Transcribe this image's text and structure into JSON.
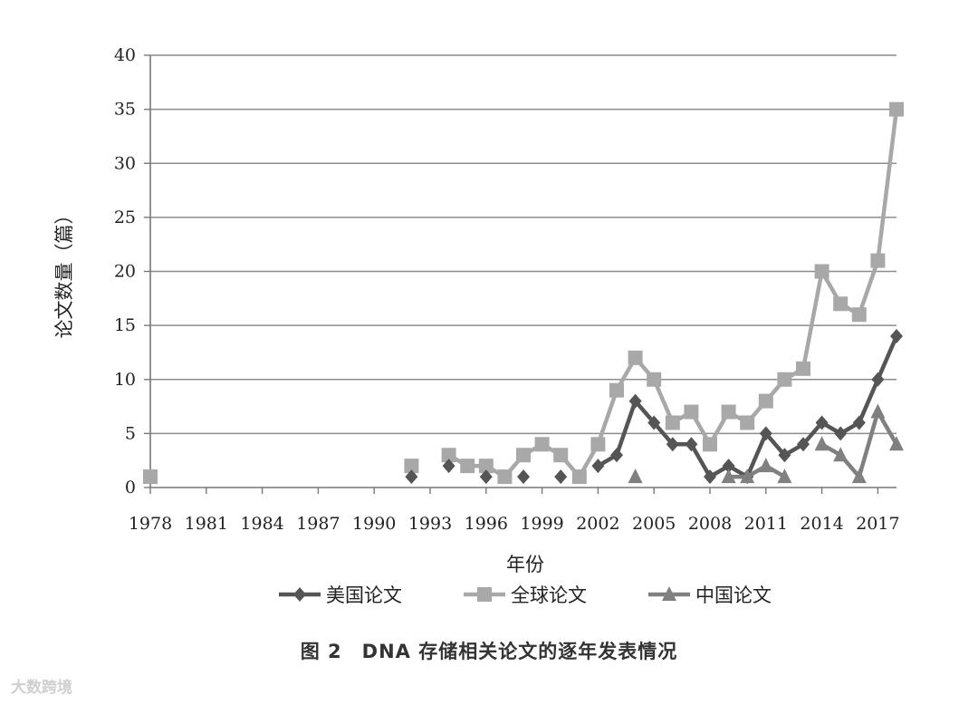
{
  "chart_data": {
    "type": "line",
    "ylabel": "论文数量（篇）",
    "xlabel": "年份",
    "ylim": [
      0,
      40
    ],
    "yticks": [
      0,
      5,
      10,
      15,
      20,
      25,
      30,
      35,
      40
    ],
    "xlim": [
      1978,
      2018
    ],
    "xticks": [
      1978,
      1981,
      1984,
      1987,
      1990,
      1993,
      1996,
      1999,
      2002,
      2005,
      2008,
      2011,
      2014,
      2017
    ],
    "grid": "horizontal",
    "legend_position": "bottom",
    "series": [
      {
        "name": "美国论文",
        "color": "#555555",
        "marker": "diamond",
        "points": [
          [
            1992,
            1
          ],
          [
            1994,
            2
          ],
          [
            1996,
            1
          ],
          [
            1998,
            1
          ],
          [
            2000,
            1
          ],
          [
            2002,
            2
          ],
          [
            2003,
            3
          ],
          [
            2004,
            8
          ],
          [
            2005,
            6
          ],
          [
            2006,
            4
          ],
          [
            2007,
            4
          ],
          [
            2008,
            1
          ],
          [
            2009,
            2
          ],
          [
            2010,
            1
          ],
          [
            2011,
            5
          ],
          [
            2012,
            3
          ],
          [
            2013,
            4
          ],
          [
            2014,
            6
          ],
          [
            2015,
            5
          ],
          [
            2016,
            6
          ],
          [
            2017,
            10
          ],
          [
            2018,
            14
          ]
        ],
        "segments": [
          [
            2002,
            2003,
            2004,
            2005,
            2006,
            2007,
            2008,
            2009,
            2010,
            2011,
            2012,
            2013,
            2014,
            2015,
            2016,
            2017,
            2018
          ]
        ]
      },
      {
        "name": "全球论文",
        "color": "#a8a8a8",
        "marker": "square",
        "points": [
          [
            1978,
            1
          ],
          [
            1992,
            2
          ],
          [
            1994,
            3
          ],
          [
            1995,
            2
          ],
          [
            1996,
            2
          ],
          [
            1997,
            1
          ],
          [
            1998,
            3
          ],
          [
            1999,
            4
          ],
          [
            2000,
            3
          ],
          [
            2001,
            1
          ],
          [
            2002,
            4
          ],
          [
            2003,
            9
          ],
          [
            2004,
            12
          ],
          [
            2005,
            10
          ],
          [
            2006,
            6
          ],
          [
            2007,
            7
          ],
          [
            2008,
            4
          ],
          [
            2009,
            7
          ],
          [
            2010,
            6
          ],
          [
            2011,
            8
          ],
          [
            2012,
            10
          ],
          [
            2013,
            11
          ],
          [
            2014,
            20
          ],
          [
            2015,
            17
          ],
          [
            2016,
            16
          ],
          [
            2017,
            21
          ],
          [
            2018,
            35
          ]
        ],
        "segments": [
          [
            1994,
            1995,
            1996,
            1997,
            1998,
            1999,
            2000,
            2001,
            2002,
            2003,
            2004,
            2005,
            2006,
            2007,
            2008,
            2009,
            2010,
            2011,
            2012,
            2013,
            2014,
            2015,
            2016,
            2017,
            2018
          ]
        ]
      },
      {
        "name": "中国论文",
        "color": "#808080",
        "marker": "triangle",
        "points": [
          [
            2004,
            1
          ],
          [
            2009,
            1
          ],
          [
            2010,
            1
          ],
          [
            2011,
            2
          ],
          [
            2012,
            1
          ],
          [
            2014,
            4
          ],
          [
            2015,
            3
          ],
          [
            2016,
            1
          ],
          [
            2017,
            7
          ],
          [
            2018,
            4
          ]
        ],
        "segments": [
          [
            2009,
            2010,
            2011,
            2012
          ],
          [
            2014,
            2015,
            2016,
            2017,
            2018
          ]
        ]
      }
    ]
  },
  "caption": "图 2　DNA 存储相关论文的逐年发表情况",
  "watermark": "大数跨境"
}
